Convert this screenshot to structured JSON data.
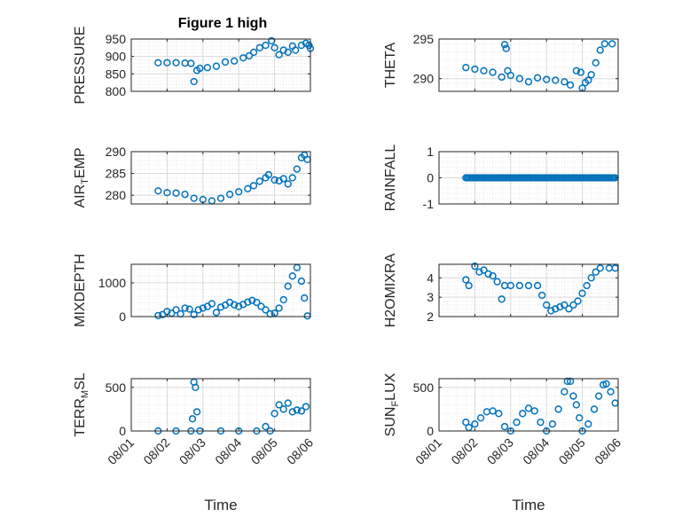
{
  "figure": {
    "title": "Figure 1 high"
  },
  "colors": {
    "marker": "#0072bd",
    "axis": "#262626",
    "grid": "#d9d9d9"
  },
  "chart_data": [
    {
      "type": "scatter",
      "id": "pressure",
      "title": "Figure 1 high",
      "ylabel": "PRESSURE",
      "ylim": [
        800,
        950
      ],
      "yticks": [
        800,
        850,
        900,
        950
      ],
      "ytick_labels": [
        "800",
        "850",
        "900",
        "950"
      ],
      "xlim": [
        "08/01",
        "08/06"
      ],
      "xticks": [
        "08/01",
        "08/02",
        "08/03",
        "08/04",
        "08/05",
        "08/06"
      ],
      "show_xticklabels": false,
      "xlabel": "",
      "grid": true,
      "minor_grid": true,
      "points": [
        [
          "08/01 18:00",
          882
        ],
        [
          "08/02 00:00",
          882
        ],
        [
          "08/02 06:00",
          882
        ],
        [
          "08/02 12:00",
          881
        ],
        [
          "08/02 16:00",
          880
        ],
        [
          "08/02 18:00",
          828
        ],
        [
          "08/02 20:00",
          860
        ],
        [
          "08/02 22:00",
          866
        ],
        [
          "08/03 03:00",
          868
        ],
        [
          "08/03 09:00",
          872
        ],
        [
          "08/03 15:00",
          884
        ],
        [
          "08/03 21:00",
          887
        ],
        [
          "08/04 03:00",
          896
        ],
        [
          "08/04 07:00",
          902
        ],
        [
          "08/04 10:00",
          912
        ],
        [
          "08/04 14:00",
          925
        ],
        [
          "08/04 18:00",
          932
        ],
        [
          "08/04 22:00",
          945
        ],
        [
          "08/05 00:00",
          925
        ],
        [
          "08/05 03:00",
          905
        ],
        [
          "08/05 06:00",
          918
        ],
        [
          "08/05 09:00",
          912
        ],
        [
          "08/05 12:00",
          930
        ],
        [
          "08/05 14:00",
          918
        ],
        [
          "08/05 18:00",
          932
        ],
        [
          "08/05 21:00",
          938
        ],
        [
          "08/05 23:00",
          932
        ],
        [
          "08/06 00:00",
          923
        ]
      ]
    },
    {
      "type": "scatter",
      "id": "theta",
      "ylabel": "THETA",
      "ylim": [
        288.4,
        295
      ],
      "yticks": [
        290,
        295
      ],
      "ytick_labels": [
        "290",
        "295"
      ],
      "xlim": [
        "08/01",
        "08/06"
      ],
      "xticks": [
        "08/01",
        "08/02",
        "08/03",
        "08/04",
        "08/05",
        "08/06"
      ],
      "show_xticklabels": false,
      "xlabel": "",
      "grid": true,
      "minor_grid": true,
      "points": [
        [
          "08/01 18:00",
          291.4
        ],
        [
          "08/02 00:00",
          291.2
        ],
        [
          "08/02 06:00",
          291.0
        ],
        [
          "08/02 12:00",
          290.8
        ],
        [
          "08/02 18:00",
          290.2
        ],
        [
          "08/02 20:00",
          294.3
        ],
        [
          "08/02 21:00",
          293.8
        ],
        [
          "08/02 22:00",
          291.0
        ],
        [
          "08/03 00:00",
          290.4
        ],
        [
          "08/03 06:00",
          290.0
        ],
        [
          "08/03 12:00",
          289.6
        ],
        [
          "08/03 18:00",
          290.1
        ],
        [
          "08/04 00:00",
          289.9
        ],
        [
          "08/04 06:00",
          289.8
        ],
        [
          "08/04 12:00",
          289.6
        ],
        [
          "08/04 16:00",
          289.2
        ],
        [
          "08/04 20:00",
          291.0
        ],
        [
          "08/04 23:00",
          290.8
        ],
        [
          "08/05 00:00",
          288.8
        ],
        [
          "08/05 02:00",
          289.5
        ],
        [
          "08/05 04:00",
          289.8
        ],
        [
          "08/05 06:00",
          290.5
        ],
        [
          "08/05 09:00",
          292.0
        ],
        [
          "08/05 12:00",
          293.6
        ],
        [
          "08/05 15:00",
          294.4
        ],
        [
          "08/05 20:00",
          294.4
        ]
      ]
    },
    {
      "type": "scatter",
      "id": "air_temp",
      "ylabel": "AIR",
      "ylabel_sub": "T",
      "ylabel_rest": "EMP",
      "ylim": [
        278,
        290
      ],
      "yticks": [
        280,
        285,
        290
      ],
      "ytick_labels": [
        "280",
        "285",
        "290"
      ],
      "xlim": [
        "08/01",
        "08/06"
      ],
      "xticks": [
        "08/01",
        "08/02",
        "08/03",
        "08/04",
        "08/05",
        "08/06"
      ],
      "show_xticklabels": false,
      "xlabel": "",
      "grid": true,
      "minor_grid": true,
      "points": [
        [
          "08/01 18:00",
          281.0
        ],
        [
          "08/02 00:00",
          280.6
        ],
        [
          "08/02 06:00",
          280.5
        ],
        [
          "08/02 12:00",
          280.2
        ],
        [
          "08/02 18:00",
          279.3
        ],
        [
          "08/03 00:00",
          279.0
        ],
        [
          "08/03 06:00",
          278.7
        ],
        [
          "08/03 12:00",
          279.3
        ],
        [
          "08/03 18:00",
          280.2
        ],
        [
          "08/04 00:00",
          280.8
        ],
        [
          "08/04 06:00",
          281.5
        ],
        [
          "08/04 10:00",
          282.2
        ],
        [
          "08/04 14:00",
          283.2
        ],
        [
          "08/04 18:00",
          284.0
        ],
        [
          "08/04 20:00",
          284.7
        ],
        [
          "08/05 00:00",
          283.5
        ],
        [
          "08/05 03:00",
          283.3
        ],
        [
          "08/05 06:00",
          283.8
        ],
        [
          "08/05 09:00",
          282.6
        ],
        [
          "08/05 12:00",
          284.0
        ],
        [
          "08/05 15:00",
          286.0
        ],
        [
          "08/05 18:00",
          288.6
        ],
        [
          "08/05 20:00",
          289.2
        ],
        [
          "08/05 22:00",
          288.2
        ]
      ]
    },
    {
      "type": "scatter",
      "id": "rainfall",
      "ylabel": "RAINFALL",
      "ylim": [
        -1,
        1
      ],
      "yticks": [
        -1,
        0,
        1
      ],
      "ytick_labels": [
        "-1",
        "0",
        "1"
      ],
      "xlim": [
        "08/01",
        "08/06"
      ],
      "xticks": [
        "08/01",
        "08/02",
        "08/03",
        "08/04",
        "08/05",
        "08/06"
      ],
      "show_xticklabels": false,
      "xlabel": "",
      "grid": true,
      "minor_grid": true,
      "points": [
        [
          "08/01 18:00",
          0
        ],
        [
          "08/05 22:00",
          0
        ]
      ],
      "dense_constant_range": true
    },
    {
      "type": "scatter",
      "id": "mixdepth",
      "ylabel": "MIXDEPTH",
      "ylim": [
        0,
        1550
      ],
      "yticks": [
        0,
        1000
      ],
      "ytick_labels": [
        "0",
        "1000"
      ],
      "xlim": [
        "08/01",
        "08/06"
      ],
      "xticks": [
        "08/01",
        "08/02",
        "08/03",
        "08/04",
        "08/05",
        "08/06"
      ],
      "show_xticklabels": false,
      "xlabel": "",
      "grid": true,
      "minor_grid": true,
      "points": [
        [
          "08/01 18:00",
          30
        ],
        [
          "08/01 21:00",
          60
        ],
        [
          "08/02 00:00",
          150
        ],
        [
          "08/02 03:00",
          100
        ],
        [
          "08/02 06:00",
          200
        ],
        [
          "08/02 09:00",
          80
        ],
        [
          "08/02 12:00",
          250
        ],
        [
          "08/02 15:00",
          220
        ],
        [
          "08/02 18:00",
          60
        ],
        [
          "08/02 21:00",
          200
        ],
        [
          "08/03 00:00",
          250
        ],
        [
          "08/03 03:00",
          300
        ],
        [
          "08/03 06:00",
          380
        ],
        [
          "08/03 09:00",
          120
        ],
        [
          "08/03 12:00",
          280
        ],
        [
          "08/03 15:00",
          340
        ],
        [
          "08/03 18:00",
          420
        ],
        [
          "08/03 21:00",
          350
        ],
        [
          "08/04 00:00",
          300
        ],
        [
          "08/04 03:00",
          360
        ],
        [
          "08/04 06:00",
          430
        ],
        [
          "08/04 09:00",
          480
        ],
        [
          "08/04 12:00",
          420
        ],
        [
          "08/04 15:00",
          300
        ],
        [
          "08/04 18:00",
          200
        ],
        [
          "08/04 21:00",
          80
        ],
        [
          "08/05 00:00",
          100
        ],
        [
          "08/05 03:00",
          250
        ],
        [
          "08/05 06:00",
          500
        ],
        [
          "08/05 09:00",
          900
        ],
        [
          "08/05 12:00",
          1200
        ],
        [
          "08/05 15:00",
          1450
        ],
        [
          "08/05 18:00",
          1050
        ],
        [
          "08/05 20:00",
          550
        ],
        [
          "08/05 22:00",
          20
        ]
      ]
    },
    {
      "type": "scatter",
      "id": "h2omixra",
      "ylabel": "H2OMIXRA",
      "ylim": [
        2,
        4.7
      ],
      "yticks": [
        2,
        3,
        4
      ],
      "ytick_labels": [
        "2",
        "3",
        "4"
      ],
      "xlim": [
        "08/01",
        "08/06"
      ],
      "xticks": [
        "08/01",
        "08/02",
        "08/03",
        "08/04",
        "08/05",
        "08/06"
      ],
      "show_xticklabels": false,
      "xlabel": "",
      "grid": true,
      "minor_grid": true,
      "points": [
        [
          "08/01 18:00",
          3.9
        ],
        [
          "08/01 20:00",
          3.6
        ],
        [
          "08/02 00:00",
          4.6
        ],
        [
          "08/02 03:00",
          4.3
        ],
        [
          "08/02 06:00",
          4.4
        ],
        [
          "08/02 09:00",
          4.2
        ],
        [
          "08/02 12:00",
          4.1
        ],
        [
          "08/02 15:00",
          3.8
        ],
        [
          "08/02 18:00",
          2.9
        ],
        [
          "08/02 20:00",
          3.6
        ],
        [
          "08/03 00:00",
          3.6
        ],
        [
          "08/03 06:00",
          3.6
        ],
        [
          "08/03 12:00",
          3.6
        ],
        [
          "08/03 18:00",
          3.6
        ],
        [
          "08/03 21:00",
          3.1
        ],
        [
          "08/04 00:00",
          2.6
        ],
        [
          "08/04 03:00",
          2.3
        ],
        [
          "08/04 06:00",
          2.4
        ],
        [
          "08/04 09:00",
          2.5
        ],
        [
          "08/04 12:00",
          2.6
        ],
        [
          "08/04 15:00",
          2.4
        ],
        [
          "08/04 18:00",
          2.6
        ],
        [
          "08/04 21:00",
          2.8
        ],
        [
          "08/05 00:00",
          3.2
        ],
        [
          "08/05 03:00",
          3.6
        ],
        [
          "08/05 06:00",
          4.0
        ],
        [
          "08/05 09:00",
          4.3
        ],
        [
          "08/05 12:00",
          4.5
        ],
        [
          "08/05 18:00",
          4.5
        ],
        [
          "08/05 22:00",
          4.5
        ]
      ]
    },
    {
      "type": "scatter",
      "id": "terr_msl",
      "ylabel": "TERR",
      "ylabel_sub": "M",
      "ylabel_rest": "SL",
      "ylim": [
        0,
        600
      ],
      "yticks": [
        0,
        500
      ],
      "ytick_labels": [
        "0",
        "500"
      ],
      "xlim": [
        "08/01",
        "08/06"
      ],
      "xticks": [
        "08/01",
        "08/02",
        "08/03",
        "08/04",
        "08/05",
        "08/06"
      ],
      "xtick_labels": [
        "08/01",
        "08/02",
        "08/03",
        "08/04",
        "08/05",
        "08/06"
      ],
      "show_xticklabels": true,
      "xlabel": "Time",
      "grid": true,
      "minor_grid": true,
      "points": [
        [
          "08/01 18:00",
          0
        ],
        [
          "08/02 06:00",
          0
        ],
        [
          "08/02 16:00",
          0
        ],
        [
          "08/02 17:00",
          140
        ],
        [
          "08/02 18:00",
          560
        ],
        [
          "08/02 19:00",
          500
        ],
        [
          "08/02 20:00",
          220
        ],
        [
          "08/02 22:00",
          0
        ],
        [
          "08/03 12:00",
          0
        ],
        [
          "08/04 00:00",
          0
        ],
        [
          "08/04 12:00",
          0
        ],
        [
          "08/04 18:00",
          50
        ],
        [
          "08/04 21:00",
          0
        ],
        [
          "08/05 00:00",
          200
        ],
        [
          "08/05 03:00",
          300
        ],
        [
          "08/05 06:00",
          250
        ],
        [
          "08/05 09:00",
          320
        ],
        [
          "08/05 12:00",
          220
        ],
        [
          "08/05 15:00",
          240
        ],
        [
          "08/05 18:00",
          230
        ],
        [
          "08/05 21:00",
          280
        ]
      ]
    },
    {
      "type": "scatter",
      "id": "sun_flux",
      "ylabel": "SUN",
      "ylabel_sub": "F",
      "ylabel_rest": "LUX",
      "ylim": [
        0,
        600
      ],
      "yticks": [
        0,
        500
      ],
      "ytick_labels": [
        "0",
        "500"
      ],
      "xlim": [
        "08/01",
        "08/06"
      ],
      "xticks": [
        "08/01",
        "08/02",
        "08/03",
        "08/04",
        "08/05",
        "08/06"
      ],
      "xtick_labels": [
        "08/01",
        "08/02",
        "08/03",
        "08/04",
        "08/05",
        "08/06"
      ],
      "show_xticklabels": true,
      "xlabel": "Time",
      "grid": true,
      "minor_grid": true,
      "points": [
        [
          "08/01 18:00",
          100
        ],
        [
          "08/01 20:00",
          40
        ],
        [
          "08/02 00:00",
          80
        ],
        [
          "08/02 04:00",
          150
        ],
        [
          "08/02 08:00",
          220
        ],
        [
          "08/02 12:00",
          230
        ],
        [
          "08/02 16:00",
          200
        ],
        [
          "08/02 20:00",
          50
        ],
        [
          "08/03 00:00",
          0
        ],
        [
          "08/03 04:00",
          100
        ],
        [
          "08/03 08:00",
          200
        ],
        [
          "08/03 12:00",
          260
        ],
        [
          "08/03 16:00",
          230
        ],
        [
          "08/03 20:00",
          100
        ],
        [
          "08/04 00:00",
          0
        ],
        [
          "08/04 04:00",
          80
        ],
        [
          "08/04 08:00",
          250
        ],
        [
          "08/04 12:00",
          450
        ],
        [
          "08/04 14:00",
          570
        ],
        [
          "08/04 16:00",
          570
        ],
        [
          "08/04 18:00",
          400
        ],
        [
          "08/04 20:00",
          300
        ],
        [
          "08/04 22:00",
          150
        ],
        [
          "08/05 00:00",
          0
        ],
        [
          "08/05 04:00",
          80
        ],
        [
          "08/05 08:00",
          250
        ],
        [
          "08/05 11:00",
          400
        ],
        [
          "08/05 14:00",
          530
        ],
        [
          "08/05 16:00",
          540
        ],
        [
          "08/05 19:00",
          450
        ],
        [
          "08/05 22:00",
          320
        ]
      ]
    }
  ]
}
